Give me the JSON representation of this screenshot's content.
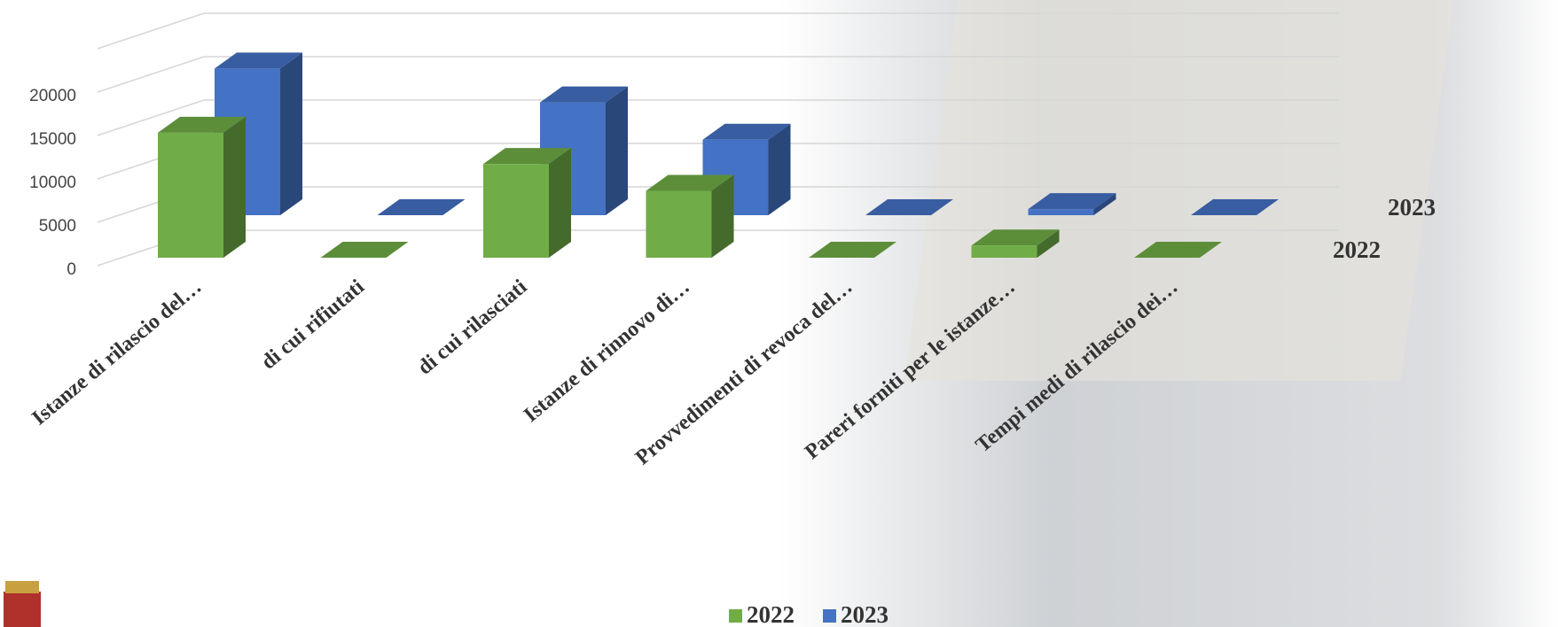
{
  "chart_data": {
    "type": "bar3d",
    "categories": [
      "Istanze di rilascio del…",
      "di cui rifiutati",
      "di cui rilasciati",
      "Istanze di rinnovo di…",
      "Provvedimenti di revoca del…",
      "Pareri forniti per le istanze…",
      "Tempi medi di rilascio dei…"
    ],
    "series": [
      {
        "name": "2022",
        "color": "#70ad47",
        "values": [
          14400,
          0,
          10800,
          7700,
          0,
          1400,
          0
        ]
      },
      {
        "name": "2023",
        "color": "#4472c4",
        "values": [
          16900,
          0,
          13000,
          8700,
          0,
          700,
          0
        ]
      }
    ],
    "ylim": [
      0,
      25000
    ],
    "yticks": [
      0,
      5000,
      10000,
      15000,
      20000
    ],
    "grid": true,
    "legend": "bottom"
  }
}
